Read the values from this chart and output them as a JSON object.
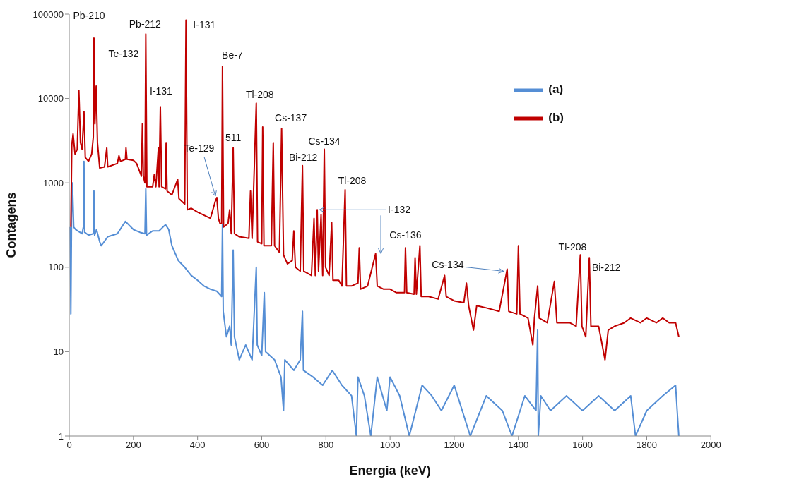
{
  "chart_data": {
    "type": "line",
    "xlabel": "Energia (keV)",
    "ylabel": "Contagens",
    "xlim": [
      0,
      2000
    ],
    "xticks": [
      0,
      200,
      400,
      600,
      800,
      1000,
      1200,
      1400,
      1600,
      1800,
      2000
    ],
    "ylim": [
      1,
      100000
    ],
    "yticks": [
      1,
      10,
      100,
      1000,
      10000,
      100000
    ],
    "log": "y",
    "legend": "top right",
    "marker": "none",
    "line_style": "solid",
    "series": [
      {
        "name": "(a)",
        "color": "#558ed5",
        "x": [
          3,
          5,
          7,
          10,
          14,
          20,
          40,
          44,
          46,
          48,
          60,
          75,
          77,
          79,
          85,
          95,
          100,
          120,
          150,
          175,
          185,
          200,
          220,
          236,
          238.6,
          241,
          260,
          280,
          300,
          310,
          320,
          340,
          360,
          380,
          400,
          420,
          440,
          460,
          475,
          477.6,
          480,
          490,
          500,
          505,
          511,
          515,
          530,
          550,
          570,
          583,
          586,
          600,
          608,
          612,
          640,
          660,
          668,
          672,
          700,
          720,
          727,
          730,
          760,
          790,
          820,
          850,
          880,
          895,
          900,
          920,
          940,
          960,
          990,
          1000,
          1030,
          1060,
          1100,
          1130,
          1160,
          1200,
          1250,
          1300,
          1350,
          1380,
          1420,
          1455,
          1460,
          1462,
          1470,
          1500,
          1550,
          1600,
          1650,
          1700,
          1750,
          1765,
          1800,
          1850,
          1890,
          1900
        ],
        "values": [
          300,
          28,
          300,
          1000,
          300,
          280,
          250,
          300,
          1800,
          260,
          240,
          250,
          800,
          240,
          280,
          200,
          180,
          230,
          250,
          350,
          320,
          280,
          260,
          250,
          850,
          240,
          270,
          270,
          320,
          280,
          180,
          120,
          100,
          80,
          70,
          60,
          55,
          52,
          45,
          320,
          30,
          15,
          20,
          12,
          160,
          15,
          8,
          12,
          8,
          100,
          12,
          9,
          50,
          10,
          8,
          5,
          2,
          8,
          6,
          8,
          30,
          6,
          5,
          4,
          6,
          4,
          3,
          1,
          5,
          3,
          1,
          5,
          2,
          5,
          3,
          1,
          4,
          3,
          2,
          4,
          1,
          3,
          2,
          1,
          3,
          2,
          18,
          1,
          3,
          2,
          3,
          2,
          3,
          2,
          3,
          1,
          2,
          3,
          4,
          1
        ]
      },
      {
        "name": "(b)",
        "color": "#c00000",
        "x": [
          5,
          8,
          12,
          18,
          25,
          30,
          35,
          40,
          46,
          50,
          60,
          70,
          75,
          77,
          80,
          84,
          88,
          95,
          110,
          117,
          120,
          150,
          155,
          160,
          175,
          177,
          180,
          200,
          210,
          225,
          228,
          231,
          236,
          238.6,
          242,
          260,
          265,
          270,
          278,
          280,
          284,
          288,
          300,
          302,
          305,
          320,
          338,
          342,
          360,
          364,
          368,
          380,
          400,
          440,
          455,
          460,
          465,
          470,
          475,
          477.6,
          481,
          495,
          500,
          505,
          511,
          515,
          530,
          560,
          565,
          570,
          583,
          587,
          600,
          603,
          607,
          630,
          636,
          640,
          655,
          662,
          668,
          680,
          695,
          700,
          705,
          720,
          727,
          731,
          755,
          763,
          767,
          773,
          777,
          785,
          790,
          795,
          799,
          810,
          818,
          822,
          840,
          850,
          860,
          864,
          880,
          900,
          904,
          908,
          930,
          955,
          960,
          980,
          1000,
          1020,
          1045,
          1048,
          1052,
          1075,
          1078,
          1082,
          1093,
          1097,
          1120,
          1150,
          1170,
          1175,
          1200,
          1230,
          1238,
          1245,
          1260,
          1270,
          1300,
          1340,
          1365,
          1370,
          1395,
          1400,
          1405,
          1430,
          1445,
          1450,
          1460,
          1465,
          1490,
          1512,
          1520,
          1560,
          1580,
          1593,
          1598,
          1610,
          1621,
          1626,
          1650,
          1670,
          1680,
          1700,
          1730,
          1750,
          1780,
          1800,
          1830,
          1850,
          1870,
          1890,
          1900
        ],
        "values": [
          300,
          2800,
          3800,
          2200,
          2500,
          12500,
          3000,
          2500,
          7000,
          2000,
          1800,
          2200,
          3500,
          52000,
          5000,
          14000,
          3000,
          1500,
          1550,
          2600,
          1550,
          1700,
          2100,
          1800,
          1900,
          2600,
          1900,
          1850,
          1700,
          1200,
          5000,
          1200,
          1000,
          58000,
          900,
          900,
          1250,
          900,
          2600,
          900,
          8000,
          900,
          850,
          3000,
          800,
          720,
          1100,
          650,
          560,
          85000,
          480,
          500,
          450,
          380,
          600,
          670,
          380,
          330,
          330,
          24000,
          300,
          330,
          480,
          250,
          2600,
          250,
          230,
          220,
          800,
          220,
          8800,
          200,
          190,
          4600,
          180,
          180,
          3000,
          180,
          150,
          4400,
          140,
          110,
          120,
          270,
          100,
          90,
          1600,
          90,
          80,
          380,
          80,
          480,
          90,
          420,
          80,
          2500,
          100,
          80,
          340,
          70,
          70,
          60,
          830,
          60,
          60,
          65,
          170,
          55,
          60,
          145,
          60,
          55,
          55,
          50,
          50,
          170,
          50,
          48,
          130,
          48,
          180,
          45,
          45,
          42,
          80,
          45,
          40,
          38,
          65,
          35,
          18,
          35,
          33,
          30,
          95,
          30,
          28,
          180,
          28,
          25,
          12,
          25,
          60,
          25,
          22,
          68,
          22,
          22,
          20,
          140,
          20,
          15,
          130,
          20,
          20,
          8,
          18,
          20,
          22,
          25,
          22,
          25,
          22,
          25,
          22,
          22,
          15
        ]
      }
    ],
    "annotations": [
      "Pb-210",
      "Te-132",
      {
        "text": "Pb-212",
        "x": 238.6,
        "y": 58000
      },
      {
        "text": "I-131",
        "x": 364,
        "y": 85000
      },
      {
        "text": "I-131",
        "x": 284,
        "y": 8000
      },
      {
        "text": "Be-7",
        "x": 477.6,
        "y": 24000
      },
      {
        "text": "511",
        "x": 511,
        "y": 2600
      },
      {
        "text": "Tl-208",
        "x": 583,
        "y": 8800
      },
      {
        "text": "Cs-137",
        "x": 662,
        "y": 4400
      },
      {
        "text": "Bi-212",
        "x": 727,
        "y": 1600
      },
      {
        "text": "Cs-134",
        "x": 795,
        "y": 2500
      },
      {
        "text": "Tl-208",
        "x": 860,
        "y": 830
      },
      {
        "text": "Te-129",
        "x": 460,
        "y": 670
      },
      {
        "text": "I-132",
        "x": 773,
        "y": 480
      },
      {
        "text": "Cs-136",
        "x": 1048,
        "y": 170
      },
      {
        "text": "Cs-134",
        "x": 1365,
        "y": 95
      },
      {
        "text": "Tl-208",
        "x": 1593,
        "y": 140
      },
      {
        "text": "Bi-212",
        "x": 1621,
        "y": 130
      }
    ]
  }
}
